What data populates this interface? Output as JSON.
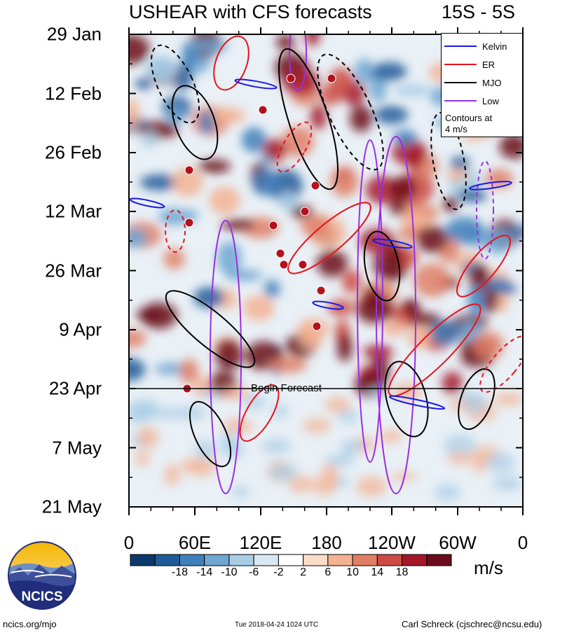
{
  "header": {
    "title": "USHEAR with CFS forecasts",
    "region": "15S - 5S"
  },
  "chart_data": {
    "type": "heatmap",
    "title": "USHEAR with CFS forecasts",
    "subtitle": "15S - 5S",
    "y_tick_labels": [
      "29 Jan",
      "12 Feb",
      "26 Feb",
      "12 Mar",
      "26 Mar",
      "9 Apr",
      "23 Apr",
      "7 May",
      "21 May"
    ],
    "x_tick_labels": [
      "0",
      "60E",
      "120E",
      "180",
      "120W",
      "60W",
      "0"
    ],
    "x_range_deg": [
      0,
      360
    ],
    "colorbar": {
      "units": "m/s",
      "tick_labels": [
        "-18",
        "-14",
        "-10",
        "-6",
        "-2",
        "2",
        "6",
        "10",
        "14",
        "18"
      ],
      "colors": [
        "#0a3a6b",
        "#1f5b98",
        "#3f7fbb",
        "#6fa6d2",
        "#a9cde5",
        "#d8e8f2",
        "#ffffff",
        "#fbdcc9",
        "#f3b293",
        "#e07f66",
        "#cc4a43",
        "#a51628",
        "#6b0a1a"
      ]
    },
    "legend": {
      "entries": [
        {
          "name": "Kelvin",
          "color": "#1a1ae6"
        },
        {
          "name": "ER",
          "color": "#e6141e"
        },
        {
          "name": "MJO",
          "color": "#000000"
        },
        {
          "name": "Low",
          "color": "#9b30e0"
        }
      ],
      "note_line1": "Contours at",
      "note_line2": "4 m/s"
    },
    "annotation": "Begin Forecast",
    "forecast_start": "23 Apr"
  },
  "logo": {
    "text": "NCICS"
  },
  "footer": {
    "left": "ncics.org/mjo",
    "center": "Tue 2018-04-24 1024 UTC",
    "right": "Carl Schreck (cjschrec@ncsu.edu)"
  }
}
